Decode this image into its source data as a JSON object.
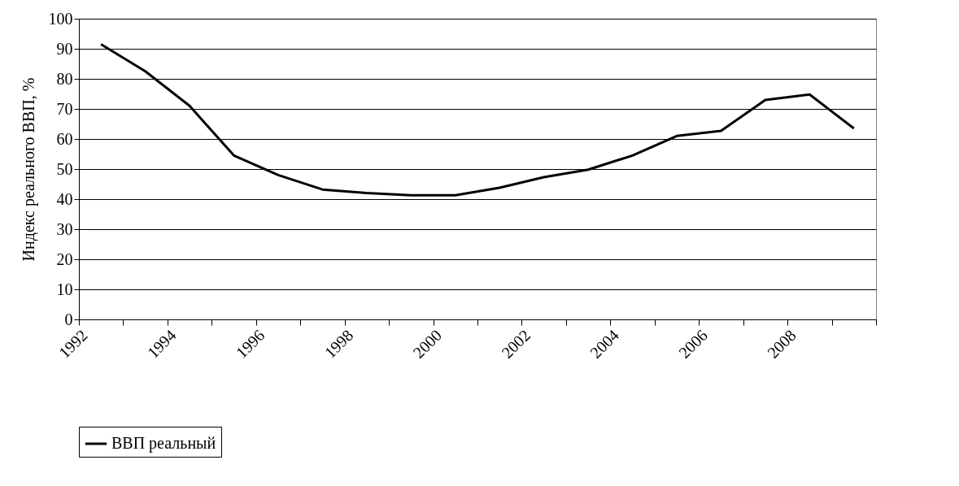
{
  "chart_data": {
    "type": "line",
    "ylabel": "Индекс реального ВВП, %",
    "x": [
      1992.5,
      1993.5,
      1994.5,
      1995.5,
      1996.5,
      1997.5,
      1998.5,
      1999.5,
      2000.5,
      2001.5,
      2002.5,
      2003.5,
      2004.5,
      2005.5,
      2006.5,
      2007.5,
      2008.5,
      2009.5
    ],
    "series": [
      {
        "name": "ВВП реальный",
        "color": "#000000",
        "values": [
          91.5,
          82.5,
          71,
          54.5,
          48,
          43.2,
          42,
          41.3,
          41.3,
          43.8,
          47.3,
          49.8,
          54.5,
          61,
          62.7,
          73,
          74.8,
          63.5
        ]
      }
    ],
    "xlim": [
      1992,
      2010
    ],
    "xticks": [
      1992,
      {
        "value": 1993,
        "label": null
      },
      1994,
      {
        "value": 1995,
        "label": null
      },
      1996,
      {
        "value": 1997,
        "label": null
      },
      1998,
      {
        "value": 1999,
        "label": null
      },
      2000,
      {
        "value": 2001,
        "label": null
      },
      2002,
      {
        "value": 2003,
        "label": null
      },
      2004,
      {
        "value": 2005,
        "label": null
      },
      2006,
      {
        "value": 2007,
        "label": null
      },
      2008,
      {
        "value": 2009,
        "label": null
      },
      {
        "value": 2010,
        "label": null
      }
    ],
    "ylim": [
      0,
      100
    ],
    "yticks": [
      0,
      10,
      20,
      30,
      40,
      50,
      60,
      70,
      80,
      90,
      100
    ],
    "grid": "y",
    "legend": "bottom",
    "marker": "none",
    "line_style": "solid"
  }
}
